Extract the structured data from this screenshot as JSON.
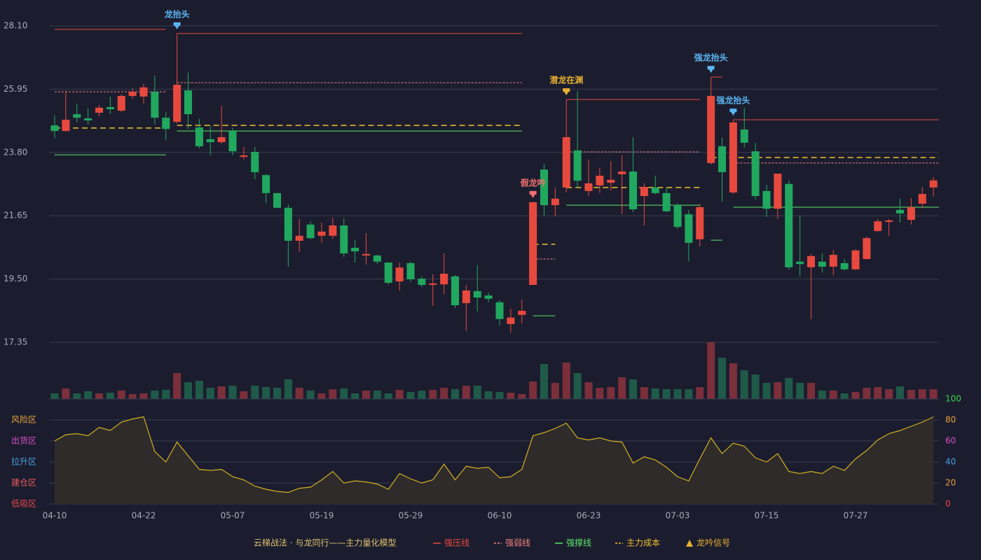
{
  "chart_data": {
    "type": "candlestick",
    "caption": "云梯战法 · 与龙同行——主力量化模型",
    "categories": [
      "04-10",
      null,
      null,
      null,
      null,
      null,
      null,
      null,
      "04-22",
      null,
      null,
      null,
      null,
      null,
      null,
      null,
      "05-07",
      null,
      null,
      null,
      null,
      null,
      null,
      null,
      "05-19",
      null,
      null,
      null,
      null,
      null,
      null,
      null,
      "05-29",
      null,
      null,
      null,
      null,
      null,
      null,
      null,
      "06-10",
      null,
      null,
      null,
      null,
      null,
      null,
      null,
      "06-23",
      null,
      null,
      null,
      null,
      null,
      null,
      null,
      "07-03",
      null,
      null,
      null,
      null,
      null,
      null,
      null,
      "07-15",
      null,
      null,
      null,
      null,
      null,
      null,
      null,
      "07-27",
      null,
      null,
      null,
      null,
      null,
      null,
      null
    ],
    "open": [
      24.72,
      24.53,
      25.1,
      24.96,
      25.15,
      25.34,
      25.22,
      25.72,
      25.7,
      25.86,
      24.98,
      24.84,
      25.91,
      24.65,
      24.25,
      24.15,
      24.53,
      23.65,
      23.82,
      23.03,
      22.42,
      21.92,
      20.8,
      21.35,
      20.97,
      20.97,
      21.32,
      20.56,
      20.3,
      20.3,
      20.06,
      19.42,
      20.04,
      19.51,
      19.3,
      19.32,
      19.59,
      18.68,
      19.09,
      18.94,
      18.71,
      17.97,
      18.28,
      19.3,
      23.22,
      22.01,
      22.61,
      23.87,
      22.49,
      22.68,
      22.77,
      23.06,
      23.15,
      22.32,
      22.61,
      22.42,
      22.01,
      21.7,
      20.85,
      23.44,
      24.01,
      22.44,
      24.58,
      23.84,
      22.49,
      21.89,
      22.73,
      20.09,
      19.9,
      20.09,
      19.92,
      20.04,
      19.83,
      20.18,
      21.13,
      21.44,
      21.85,
      21.51,
      22.06,
      22.61
    ],
    "close": [
      24.53,
      24.91,
      24.98,
      24.89,
      25.32,
      25.27,
      25.72,
      25.86,
      26.01,
      24.98,
      24.6,
      26.1,
      25.1,
      24.01,
      24.15,
      24.32,
      23.84,
      23.7,
      23.13,
      22.42,
      21.92,
      20.8,
      20.97,
      20.89,
      21.11,
      21.32,
      20.37,
      20.44,
      20.35,
      20.09,
      19.37,
      19.89,
      19.49,
      19.3,
      19.35,
      19.68,
      18.61,
      19.11,
      18.87,
      18.83,
      18.14,
      18.19,
      18.42,
      22.11,
      22.01,
      22.23,
      24.32,
      22.84,
      22.75,
      23.01,
      22.87,
      23.15,
      21.87,
      22.63,
      22.42,
      21.8,
      21.27,
      20.73,
      21.94,
      25.72,
      23.13,
      24.82,
      24.13,
      22.32,
      21.89,
      23.08,
      19.9,
      20.01,
      20.28,
      19.92,
      20.32,
      19.83,
      20.47,
      20.89,
      21.46,
      21.49,
      21.73,
      21.94,
      22.39,
      22.85
    ],
    "high": [
      25.06,
      25.89,
      25.46,
      25.29,
      25.41,
      25.7,
      25.77,
      25.98,
      26.13,
      26.41,
      25.17,
      26.1,
      26.51,
      24.94,
      24.7,
      25.39,
      24.63,
      23.99,
      23.99,
      23.08,
      22.42,
      22.04,
      21.54,
      21.46,
      21.42,
      21.58,
      21.56,
      20.82,
      21.06,
      20.32,
      20.06,
      20.06,
      20.09,
      19.59,
      19.66,
      20.37,
      19.63,
      19.3,
      19.97,
      19.04,
      18.78,
      18.49,
      18.8,
      22.11,
      23.41,
      22.61,
      24.32,
      25.89,
      23.56,
      23.27,
      23.51,
      23.7,
      24.32,
      22.75,
      23.01,
      22.61,
      22.08,
      21.85,
      22.04,
      25.72,
      24.3,
      24.82,
      25.32,
      24.13,
      22.7,
      23.08,
      22.85,
      21.66,
      20.35,
      20.37,
      20.49,
      20.18,
      20.51,
      20.94,
      21.54,
      21.54,
      22.23,
      22.25,
      22.63,
      22.96
    ],
    "low": [
      24.29,
      24.51,
      24.82,
      24.75,
      25.03,
      25.1,
      25.17,
      25.63,
      25.46,
      24.75,
      24.22,
      24.79,
      24.6,
      23.94,
      23.7,
      24.1,
      23.7,
      23.56,
      22.89,
      22.08,
      21.92,
      19.92,
      20.42,
      20.85,
      20.73,
      20.87,
      20.25,
      20.06,
      19.99,
      20.01,
      19.32,
      19.11,
      19.4,
      19.23,
      18.59,
      18.99,
      18.52,
      17.73,
      18.4,
      18.71,
      17.92,
      17.68,
      17.99,
      19.3,
      21.66,
      21.63,
      22.44,
      22.61,
      22.32,
      22.42,
      22.51,
      21.7,
      21.77,
      21.32,
      22.37,
      21.77,
      21.2,
      20.09,
      20.61,
      23.39,
      22.13,
      22.39,
      23.96,
      22.2,
      21.61,
      21.54,
      19.82,
      19.59,
      18.14,
      19.71,
      19.63,
      19.78,
      19.8,
      20.16,
      21.11,
      20.97,
      21.42,
      21.35,
      21.89,
      22.3
    ],
    "up_color": "#e8493e",
    "down_color": "#21a85f",
    "ylim": [
      17.35,
      28.1
    ],
    "yticks": [
      {
        "value": 28.1,
        "label": "28.10"
      },
      25.95,
      {
        "value": 23.8,
        "label": "23.80"
      },
      21.65,
      {
        "value": 19.5,
        "label": "19.50"
      },
      17.35
    ],
    "grid": true,
    "volume": {
      "values": [
        8,
        15,
        8,
        11,
        8,
        9,
        12,
        7,
        8,
        12,
        13,
        37,
        24,
        26,
        16,
        18,
        19,
        11,
        19,
        17,
        16,
        28,
        16,
        12,
        8,
        14,
        15,
        8,
        12,
        12,
        8,
        13,
        10,
        12,
        13,
        16,
        14,
        19,
        19,
        11,
        10,
        9,
        7,
        25,
        50,
        23,
        52,
        37,
        24,
        16,
        17,
        31,
        28,
        17,
        15,
        14,
        14,
        14,
        17,
        81,
        59,
        51,
        41,
        35,
        23,
        24,
        30,
        23,
        23,
        12,
        12,
        8,
        10,
        16,
        17,
        14,
        18,
        13,
        14,
        14
      ],
      "up_color": "#7b2f3a",
      "down_color": "#1f5a48"
    },
    "levels": [
      {
        "name": "强压线",
        "color": "#e8493e",
        "style": "solid",
        "segments": [
          {
            "start": 0,
            "end": 10,
            "value": 27.98
          },
          {
            "start": 11,
            "end": 42,
            "value": 27.84
          },
          {
            "start": 46,
            "end": 58,
            "value": 25.6
          },
          {
            "start": 59,
            "end": 60,
            "value": 26.36
          },
          {
            "start": 61,
            "end": 79,
            "value": 24.91
          }
        ]
      },
      {
        "name": "强弱线",
        "color": "#f08080",
        "style": "dotted",
        "segments": [
          {
            "start": 0,
            "end": 10,
            "value": 25.86
          },
          {
            "start": 11,
            "end": 42,
            "value": 26.17
          },
          {
            "start": 43,
            "end": 45,
            "value": 20.18
          },
          {
            "start": 46,
            "end": 58,
            "value": 23.82
          },
          {
            "start": 61,
            "end": 79,
            "value": 23.44
          }
        ]
      },
      {
        "name": "强撑线",
        "color": "#5be86a",
        "style": "solid",
        "segments": [
          {
            "start": 0,
            "end": 10,
            "value": 23.72
          },
          {
            "start": 11,
            "end": 42,
            "value": 24.53
          },
          {
            "start": 43,
            "end": 45,
            "value": 18.25
          },
          {
            "start": 46,
            "end": 58,
            "value": 22.01
          },
          {
            "start": 59,
            "end": 60,
            "value": 20.82
          },
          {
            "start": 61,
            "end": 79,
            "value": 21.94
          }
        ]
      },
      {
        "name": "主力成本",
        "color": "#f0c030",
        "style": "dashed",
        "segments": [
          {
            "start": 0,
            "end": 10,
            "value": 24.63
          },
          {
            "start": 11,
            "end": 42,
            "value": 24.72
          },
          {
            "start": 43,
            "end": 45,
            "value": 20.68
          },
          {
            "start": 46,
            "end": 58,
            "value": 22.61
          },
          {
            "start": 59,
            "end": 79,
            "value": 23.63
          }
        ]
      }
    ],
    "signals": [
      {
        "index": 11,
        "label": "龙抬头",
        "color": "#5ab4f0"
      },
      {
        "index": 43,
        "label": "假龙吟",
        "color": "#f07070"
      },
      {
        "index": 46,
        "label": "潜龙在渊",
        "color": "#e8b030"
      },
      {
        "index": 59,
        "label": "强龙抬头",
        "color": "#5ab4f0"
      },
      {
        "index": 61,
        "label": "强龙抬头",
        "color": "#5ab4f0"
      }
    ],
    "signal_legend": {
      "label": "龙吟信号",
      "color": "#e8b030"
    },
    "indicator": {
      "values": [
        60,
        66,
        67,
        65,
        73,
        70,
        78,
        81,
        83,
        50,
        40,
        59,
        46,
        33,
        32,
        33,
        26,
        23,
        17,
        14,
        12,
        11,
        15,
        16,
        23,
        31,
        20,
        22,
        21,
        19,
        14,
        29,
        24,
        20,
        23,
        38,
        23,
        36,
        34,
        35,
        25,
        26,
        33,
        65,
        68,
        72,
        77,
        63,
        61,
        63,
        60,
        59,
        39,
        45,
        42,
        35,
        26,
        22,
        43,
        63,
        48,
        58,
        55,
        44,
        40,
        48,
        31,
        29,
        31,
        29,
        36,
        32,
        43,
        51,
        61,
        67,
        70,
        74,
        78,
        83
      ],
      "color": "#d4b020",
      "ylim": [
        0,
        100
      ],
      "yticks": [
        0,
        20,
        40,
        60,
        80,
        100
      ],
      "ytick_colors": [
        "#e84a4a",
        "#e8a03a",
        "#4a9de0",
        "#d84ec8",
        "#e8a03a",
        "#35d64a"
      ],
      "zones": [
        {
          "value": 80,
          "label": "风险区",
          "color": "#e8a03a"
        },
        {
          "value": 60,
          "label": "出货区",
          "color": "#d84ec8"
        },
        {
          "value": 40,
          "label": "拉升区",
          "color": "#4a9de0"
        },
        {
          "value": 20,
          "label": "建仓区",
          "color": "#e85a5a"
        },
        {
          "value": 0,
          "label": "低吸区",
          "color": "#e84a4a"
        }
      ]
    }
  }
}
